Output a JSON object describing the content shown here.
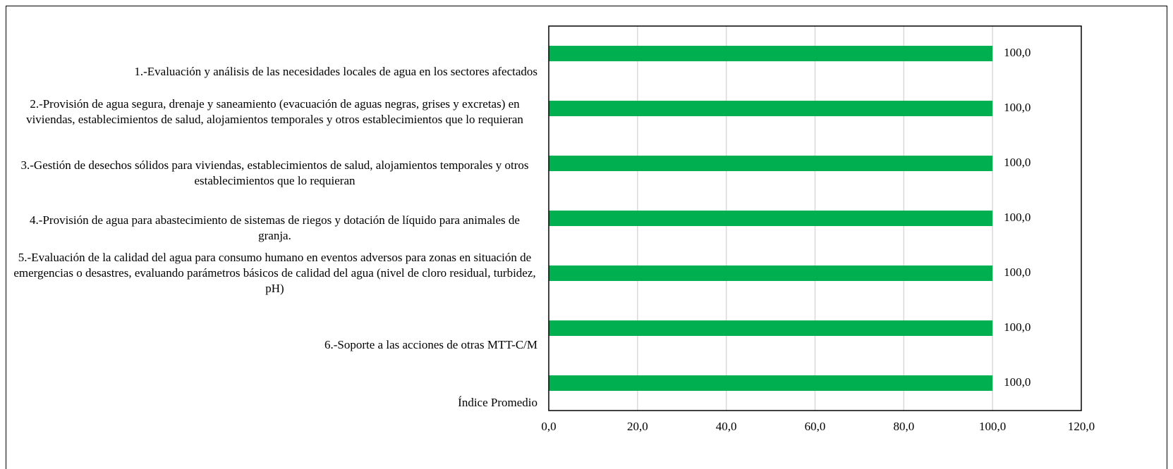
{
  "chart_data": {
    "type": "barh",
    "categories": [
      "1.-Evaluación y análisis de las necesidades locales de agua en los sectores afectados",
      "2.-Provisión de agua segura, drenaje y saneamiento (evacuación de aguas negras, grises y excretas) en viviendas, establecimientos de salud, alojamientos temporales y otros establecimientos que lo requieran",
      "3.-Gestión de desechos sólidos para viviendas, establecimientos de salud, alojamientos temporales y otros establecimientos que lo requieran",
      "4.-Provisión de agua para abastecimiento de sistemas de riegos y dotación de líquido para animales de granja.",
      "5.-Evaluación de la calidad del agua para consumo humano en eventos adversos para zonas en situación de emergencias o desastres, evaluando parámetros básicos de calidad del agua (nivel de cloro residual, turbidez, pH)",
      "6.-Soporte a las acciones de otras MTT-C/M",
      "Índice Promedio"
    ],
    "values": [
      100,
      100,
      100,
      100,
      100,
      100,
      100
    ],
    "value_labels": [
      "100,0",
      "100,0",
      "100,0",
      "100,0",
      "100,0",
      "100,0",
      "100,0"
    ],
    "color": "#00b050",
    "xlim": [
      0,
      120
    ],
    "xticks": [
      {
        "value": 0,
        "label": "0,0"
      },
      {
        "value": 20,
        "label": "20,0"
      },
      {
        "value": 40,
        "label": "40,0"
      },
      {
        "value": 60,
        "label": "60,0"
      },
      {
        "value": 80,
        "label": "80,0"
      },
      {
        "value": 100,
        "label": "100,0"
      },
      {
        "value": 120,
        "label": "120,0"
      }
    ],
    "grid": true
  }
}
